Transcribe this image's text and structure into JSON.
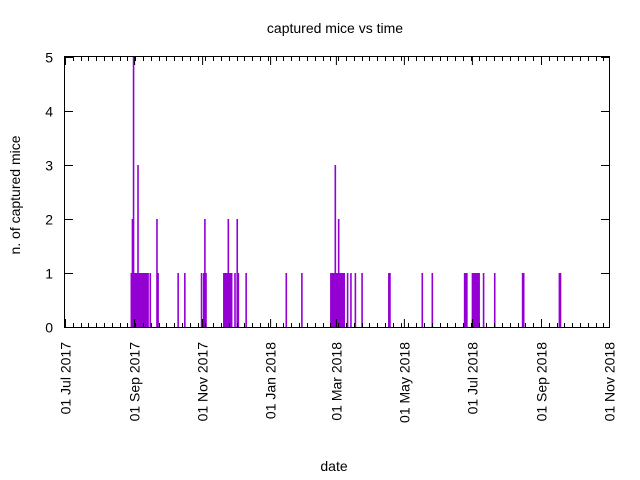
{
  "chart_data": {
    "type": "bar",
    "title": "captured mice vs time",
    "xlabel": "date",
    "ylabel": "n. of captured mice",
    "ylim": [
      0,
      5
    ],
    "yticks": [
      "0",
      "1",
      "2",
      "3",
      "4",
      "5"
    ],
    "xlim": [
      "2017-07-01",
      "2018-11-01"
    ],
    "xticks": [
      {
        "date": "2017-07-01",
        "label": "01 Jul 2017"
      },
      {
        "date": "2017-09-01",
        "label": "01 Sep 2017"
      },
      {
        "date": "2017-11-01",
        "label": "01 Nov 2017"
      },
      {
        "date": "2018-01-01",
        "label": "01 Jan 2018"
      },
      {
        "date": "2018-03-01",
        "label": "01 Mar 2018"
      },
      {
        "date": "2018-05-01",
        "label": "01 May 2018"
      },
      {
        "date": "2018-07-01",
        "label": "01 Jul 2018"
      },
      {
        "date": "2018-09-01",
        "label": "01 Sep 2018"
      },
      {
        "date": "2018-11-01",
        "label": "01 Nov 2018"
      }
    ],
    "grid": false,
    "colors": {
      "bars": "#9400d3"
    },
    "points": [
      {
        "x": "2017-08-29",
        "y": 1
      },
      {
        "x": "2017-08-30",
        "y": 2
      },
      {
        "x": "2017-08-31",
        "y": 5
      },
      {
        "x": "2017-09-01",
        "y": 1
      },
      {
        "x": "2017-09-02",
        "y": 1
      },
      {
        "x": "2017-09-03",
        "y": 1
      },
      {
        "x": "2017-09-04",
        "y": 3
      },
      {
        "x": "2017-09-05",
        "y": 1
      },
      {
        "x": "2017-09-06",
        "y": 1
      },
      {
        "x": "2017-09-07",
        "y": 1
      },
      {
        "x": "2017-09-08",
        "y": 1
      },
      {
        "x": "2017-09-09",
        "y": 1
      },
      {
        "x": "2017-09-10",
        "y": 1
      },
      {
        "x": "2017-09-11",
        "y": 1
      },
      {
        "x": "2017-09-12",
        "y": 1
      },
      {
        "x": "2017-09-13",
        "y": 1
      },
      {
        "x": "2017-09-15",
        "y": 1
      },
      {
        "x": "2017-09-21",
        "y": 2
      },
      {
        "x": "2017-09-22",
        "y": 1
      },
      {
        "x": "2017-10-10",
        "y": 1
      },
      {
        "x": "2017-10-16",
        "y": 1
      },
      {
        "x": "2017-10-31",
        "y": 1
      },
      {
        "x": "2017-11-02",
        "y": 1
      },
      {
        "x": "2017-11-03",
        "y": 2
      },
      {
        "x": "2017-11-04",
        "y": 1
      },
      {
        "x": "2017-11-20",
        "y": 1
      },
      {
        "x": "2017-11-21",
        "y": 1
      },
      {
        "x": "2017-11-22",
        "y": 1
      },
      {
        "x": "2017-11-23",
        "y": 1
      },
      {
        "x": "2017-11-24",
        "y": 2
      },
      {
        "x": "2017-11-25",
        "y": 1
      },
      {
        "x": "2017-11-26",
        "y": 1
      },
      {
        "x": "2017-11-27",
        "y": 1
      },
      {
        "x": "2017-11-30",
        "y": 1
      },
      {
        "x": "2017-12-02",
        "y": 2
      },
      {
        "x": "2017-12-03",
        "y": 1
      },
      {
        "x": "2017-12-10",
        "y": 1
      },
      {
        "x": "2018-01-15",
        "y": 1
      },
      {
        "x": "2018-01-29",
        "y": 1
      },
      {
        "x": "2018-02-24",
        "y": 1
      },
      {
        "x": "2018-02-25",
        "y": 1
      },
      {
        "x": "2018-02-26",
        "y": 1
      },
      {
        "x": "2018-02-27",
        "y": 1
      },
      {
        "x": "2018-02-28",
        "y": 3
      },
      {
        "x": "2018-03-01",
        "y": 1
      },
      {
        "x": "2018-03-02",
        "y": 1
      },
      {
        "x": "2018-03-03",
        "y": 2
      },
      {
        "x": "2018-03-04",
        "y": 1
      },
      {
        "x": "2018-03-05",
        "y": 1
      },
      {
        "x": "2018-03-06",
        "y": 1
      },
      {
        "x": "2018-03-07",
        "y": 1
      },
      {
        "x": "2018-03-08",
        "y": 1
      },
      {
        "x": "2018-03-11",
        "y": 1
      },
      {
        "x": "2018-03-14",
        "y": 1
      },
      {
        "x": "2018-03-18",
        "y": 1
      },
      {
        "x": "2018-03-24",
        "y": 1
      },
      {
        "x": "2018-04-17",
        "y": 1
      },
      {
        "x": "2018-04-18",
        "y": 1
      },
      {
        "x": "2018-05-17",
        "y": 1
      },
      {
        "x": "2018-05-26",
        "y": 1
      },
      {
        "x": "2018-06-24",
        "y": 1
      },
      {
        "x": "2018-06-25",
        "y": 1
      },
      {
        "x": "2018-06-26",
        "y": 1
      },
      {
        "x": "2018-07-01",
        "y": 1
      },
      {
        "x": "2018-07-02",
        "y": 1
      },
      {
        "x": "2018-07-03",
        "y": 1
      },
      {
        "x": "2018-07-04",
        "y": 1
      },
      {
        "x": "2018-07-05",
        "y": 1
      },
      {
        "x": "2018-07-06",
        "y": 1
      },
      {
        "x": "2018-07-07",
        "y": 1
      },
      {
        "x": "2018-07-11",
        "y": 1
      },
      {
        "x": "2018-07-21",
        "y": 1
      },
      {
        "x": "2018-08-15",
        "y": 1
      },
      {
        "x": "2018-08-16",
        "y": 1
      },
      {
        "x": "2018-09-17",
        "y": 1
      },
      {
        "x": "2018-09-18",
        "y": 1
      }
    ]
  }
}
